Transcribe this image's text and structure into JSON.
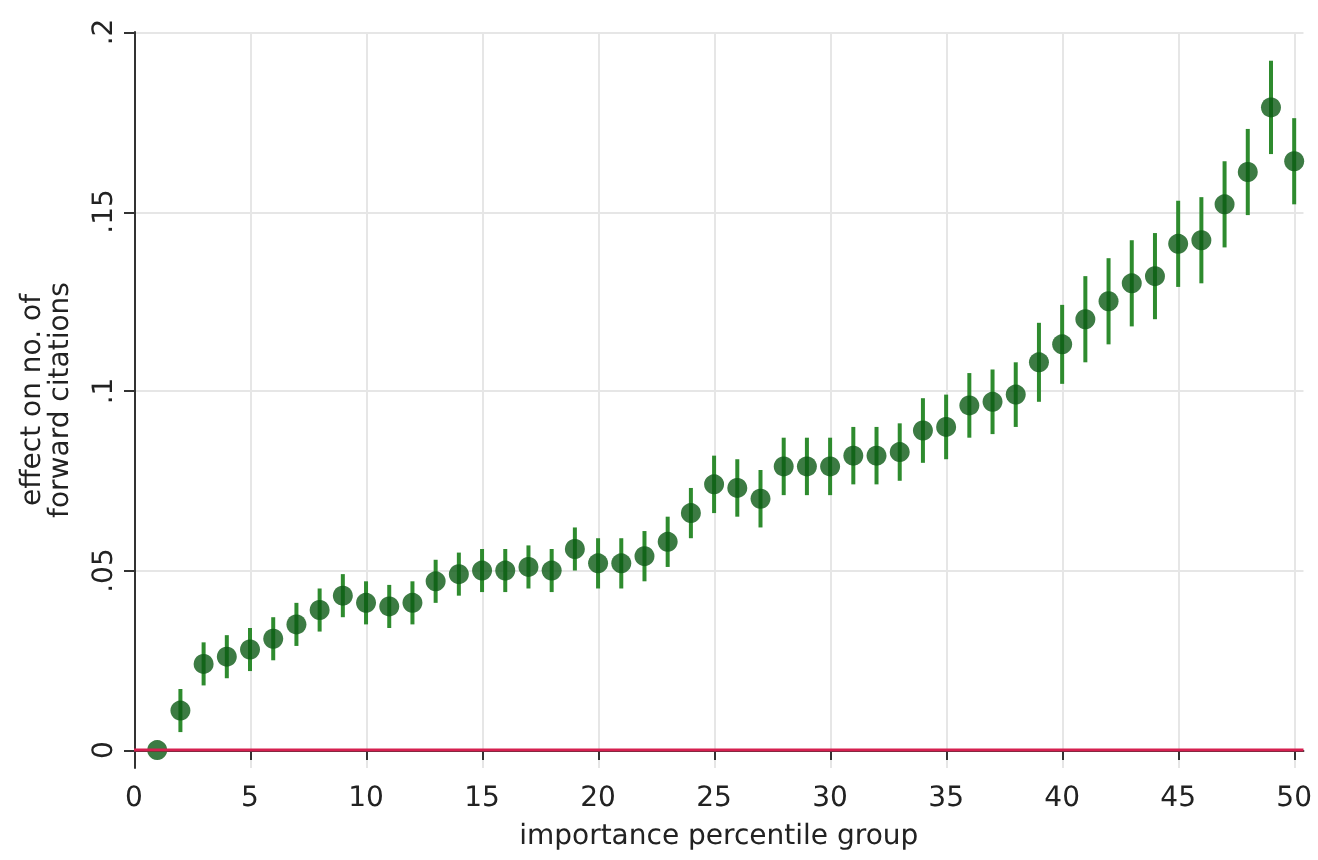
{
  "chart_data": {
    "type": "scatter",
    "xlabel": "importance percentile group",
    "ylabel": "effect on no. of\nforward citations",
    "x": [
      1,
      2,
      3,
      4,
      5,
      6,
      7,
      8,
      9,
      10,
      11,
      12,
      13,
      14,
      15,
      16,
      17,
      18,
      19,
      20,
      21,
      22,
      23,
      24,
      25,
      26,
      27,
      28,
      29,
      30,
      31,
      32,
      33,
      34,
      35,
      36,
      37,
      38,
      39,
      40,
      41,
      42,
      43,
      44,
      45,
      46,
      47,
      48,
      49,
      50
    ],
    "values": [
      0,
      0.011,
      0.024,
      0.026,
      0.028,
      0.031,
      0.035,
      0.039,
      0.043,
      0.041,
      0.04,
      0.041,
      0.047,
      0.049,
      0.05,
      0.05,
      0.051,
      0.05,
      0.056,
      0.052,
      0.052,
      0.054,
      0.058,
      0.066,
      0.074,
      0.073,
      0.07,
      0.079,
      0.079,
      0.079,
      0.082,
      0.082,
      0.083,
      0.089,
      0.09,
      0.096,
      0.097,
      0.099,
      0.108,
      0.113,
      0.12,
      0.125,
      0.13,
      0.132,
      0.141,
      0.142,
      0.152,
      0.161,
      0.179,
      0.164
    ],
    "errors": [
      null,
      0.006,
      0.006,
      0.006,
      0.006,
      0.006,
      0.006,
      0.006,
      0.006,
      0.006,
      0.006,
      0.006,
      0.006,
      0.006,
      0.006,
      0.006,
      0.006,
      0.006,
      0.006,
      0.007,
      0.007,
      0.007,
      0.007,
      0.007,
      0.008,
      0.008,
      0.008,
      0.008,
      0.008,
      0.008,
      0.008,
      0.008,
      0.008,
      0.009,
      0.009,
      0.009,
      0.009,
      0.009,
      0.011,
      0.011,
      0.012,
      0.012,
      0.012,
      0.012,
      0.012,
      0.012,
      0.012,
      0.012,
      0.013,
      0.012
    ],
    "color": "#0b5a14",
    "xlim": [
      0,
      50.4
    ],
    "xticks": [
      0,
      5,
      10,
      15,
      20,
      25,
      30,
      35,
      40,
      45,
      50
    ],
    "ylim": [
      -0.005,
      0.2
    ],
    "yticks": [
      {
        "value": 0,
        "label": "0"
      },
      {
        "value": 0.05,
        "label": ".05"
      },
      {
        "value": 0.1,
        "label": ".1"
      },
      {
        "value": 0.15,
        "label": ".15"
      },
      {
        "value": 0.2,
        "label": ".2"
      }
    ],
    "ref_lines": [
      {
        "axis": "y",
        "value": 0,
        "label": null,
        "color": "#d62050"
      }
    ],
    "grid": true,
    "marker": "circle"
  }
}
